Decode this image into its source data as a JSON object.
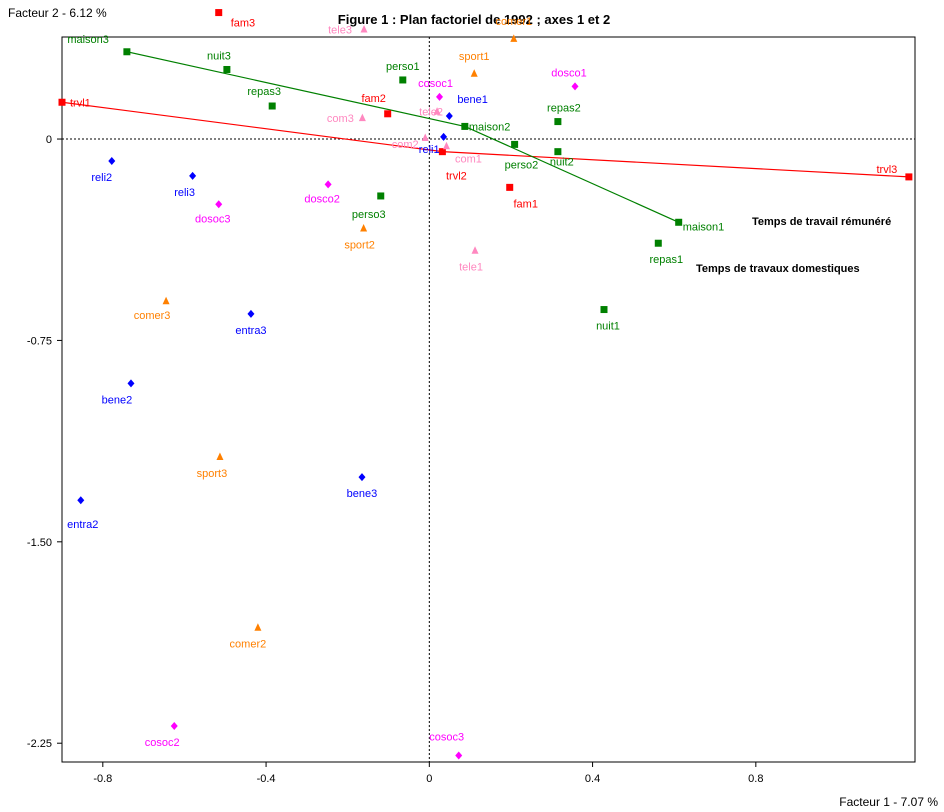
{
  "chart_data": {
    "type": "scatter",
    "title": "Figure 1 : Plan factoriel de 1992 ; axes 1 et 2",
    "xlabel": "Facteur 1  -  7.07 %",
    "ylabel": "Facteur 2  -  6.12 %",
    "xlim": [
      -0.9,
      1.19
    ],
    "ylim": [
      -2.32,
      0.38
    ],
    "xticks": [
      -0.8,
      -0.4,
      0,
      0.4,
      0.8
    ],
    "xtick_labels": [
      "-0.8",
      "-0.4",
      "0",
      "0.4",
      "0.8"
    ],
    "yticks": [
      0,
      -0.75,
      -1.5,
      -2.25
    ],
    "ytick_labels": [
      "0",
      "-0.75",
      "-1.50",
      "-2.25"
    ],
    "grid": false,
    "groups": [
      {
        "color": "#008000",
        "marker": "square",
        "points": [
          {
            "label": "maison3",
            "x": -0.741,
            "y": 0.325
          },
          {
            "label": "nuit3",
            "x": -0.496,
            "y": 0.259
          },
          {
            "label": "repas3",
            "x": -0.385,
            "y": 0.123
          },
          {
            "label": "perso1",
            "x": -0.065,
            "y": 0.22
          },
          {
            "label": "maison2",
            "x": 0.087,
            "y": 0.047
          },
          {
            "label": "perso2",
            "x": 0.209,
            "y": -0.02
          },
          {
            "label": "repas2",
            "x": 0.315,
            "y": 0.065
          },
          {
            "label": "nuit2",
            "x": 0.315,
            "y": -0.047
          },
          {
            "label": "maison1",
            "x": 0.611,
            "y": -0.31
          },
          {
            "label": "repas1",
            "x": 0.561,
            "y": -0.388
          },
          {
            "label": "nuit1",
            "x": 0.428,
            "y": -0.635
          },
          {
            "label": "perso3",
            "x": -0.119,
            "y": -0.212
          }
        ]
      },
      {
        "color": "#ff0000",
        "marker": "square",
        "points": [
          {
            "label": "trvl1",
            "x": -0.9,
            "y": 0.137
          },
          {
            "label": "fam3",
            "x": -0.516,
            "y": 0.471
          },
          {
            "label": "fam2",
            "x": -0.102,
            "y": 0.094
          },
          {
            "label": "trvl2",
            "x": 0.032,
            "y": -0.047
          },
          {
            "label": "fam1",
            "x": 0.197,
            "y": -0.18
          },
          {
            "label": "trvl3",
            "x": 1.175,
            "y": -0.141
          }
        ]
      },
      {
        "color": "#ff00ff",
        "marker": "diamond",
        "points": [
          {
            "label": "cosoc1",
            "x": 0.025,
            "y": 0.157
          },
          {
            "label": "dosco1",
            "x": 0.357,
            "y": 0.196
          },
          {
            "label": "dosco2",
            "x": -0.248,
            "y": -0.169
          },
          {
            "label": "dosoc3",
            "x": -0.516,
            "y": -0.243
          },
          {
            "label": "cosoc2",
            "x": -0.625,
            "y": -2.186
          },
          {
            "label": "cosoc3",
            "x": 0.072,
            "y": -2.296
          }
        ]
      },
      {
        "color": "#0000ff",
        "marker": "diamond",
        "points": [
          {
            "label": "bene1",
            "x": 0.049,
            "y": 0.086
          },
          {
            "label": "reli1",
            "x": 0.035,
            "y": 0.008
          },
          {
            "label": "reli2",
            "x": -0.778,
            "y": -0.082
          },
          {
            "label": "reli3",
            "x": -0.58,
            "y": -0.137
          },
          {
            "label": "entra3",
            "x": -0.437,
            "y": -0.651
          },
          {
            "label": "bene2",
            "x": -0.731,
            "y": -0.91
          },
          {
            "label": "bene3",
            "x": -0.165,
            "y": -1.259
          },
          {
            "label": "entra2",
            "x": -0.854,
            "y": -1.345
          }
        ]
      },
      {
        "color": "#ff8000",
        "marker": "triangle",
        "points": [
          {
            "label": "comer1",
            "x": 0.207,
            "y": 0.373
          },
          {
            "label": "sport1",
            "x": 0.11,
            "y": 0.243
          },
          {
            "label": "sport2",
            "x": -0.161,
            "y": -0.333
          },
          {
            "label": "comer3",
            "x": -0.645,
            "y": -0.604
          },
          {
            "label": "sport3",
            "x": -0.513,
            "y": -1.184
          },
          {
            "label": "comer2",
            "x": -0.42,
            "y": -1.82
          }
        ]
      },
      {
        "color": "#ff88c0",
        "marker": "triangle",
        "points": [
          {
            "label": "tele3",
            "x": -0.16,
            "y": 0.408
          },
          {
            "label": "tele2",
            "x": 0.019,
            "y": 0.102
          },
          {
            "label": "com3",
            "x": -0.164,
            "y": 0.078
          },
          {
            "label": "com2",
            "x": -0.01,
            "y": 0.004
          },
          {
            "label": "com1",
            "x": 0.042,
            "y": -0.027
          },
          {
            "label": "tele1",
            "x": 0.112,
            "y": -0.416
          }
        ]
      }
    ],
    "trajectories": [
      {
        "label": "Temps de travail rémunéré",
        "color": "#ff0000",
        "points": [
          [
            -0.9,
            0.137
          ],
          [
            0.032,
            -0.047
          ],
          [
            1.175,
            -0.141
          ]
        ]
      },
      {
        "label": "Temps de travaux domestiques",
        "color": "#008000",
        "points": [
          [
            -0.741,
            0.325
          ],
          [
            0.087,
            0.047
          ],
          [
            0.611,
            -0.31
          ]
        ]
      }
    ],
    "annotations": [
      "Temps de travail rémunéré",
      "Temps de travaux domestiques"
    ]
  }
}
